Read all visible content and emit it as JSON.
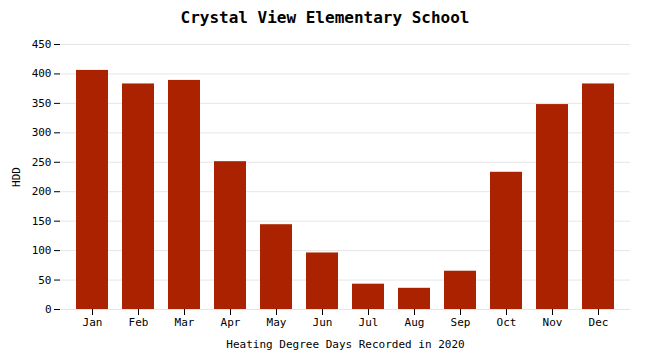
{
  "chart_data": {
    "type": "bar",
    "title": "Crystal View Elementary School",
    "xlabel": "Heating Degree Days Recorded in 2020",
    "ylabel": "HDD",
    "categories": [
      "Jan",
      "Feb",
      "Mar",
      "Apr",
      "May",
      "Jun",
      "Jul",
      "Aug",
      "Sep",
      "Oct",
      "Nov",
      "Dec"
    ],
    "values": [
      406,
      383,
      389,
      251,
      144,
      96,
      43,
      36,
      65,
      233,
      348,
      383
    ],
    "color": "#aa2200",
    "ylim": [
      0,
      450
    ],
    "yticks": [
      0,
      50,
      100,
      150,
      200,
      250,
      300,
      350,
      400,
      450
    ],
    "grid": true
  }
}
